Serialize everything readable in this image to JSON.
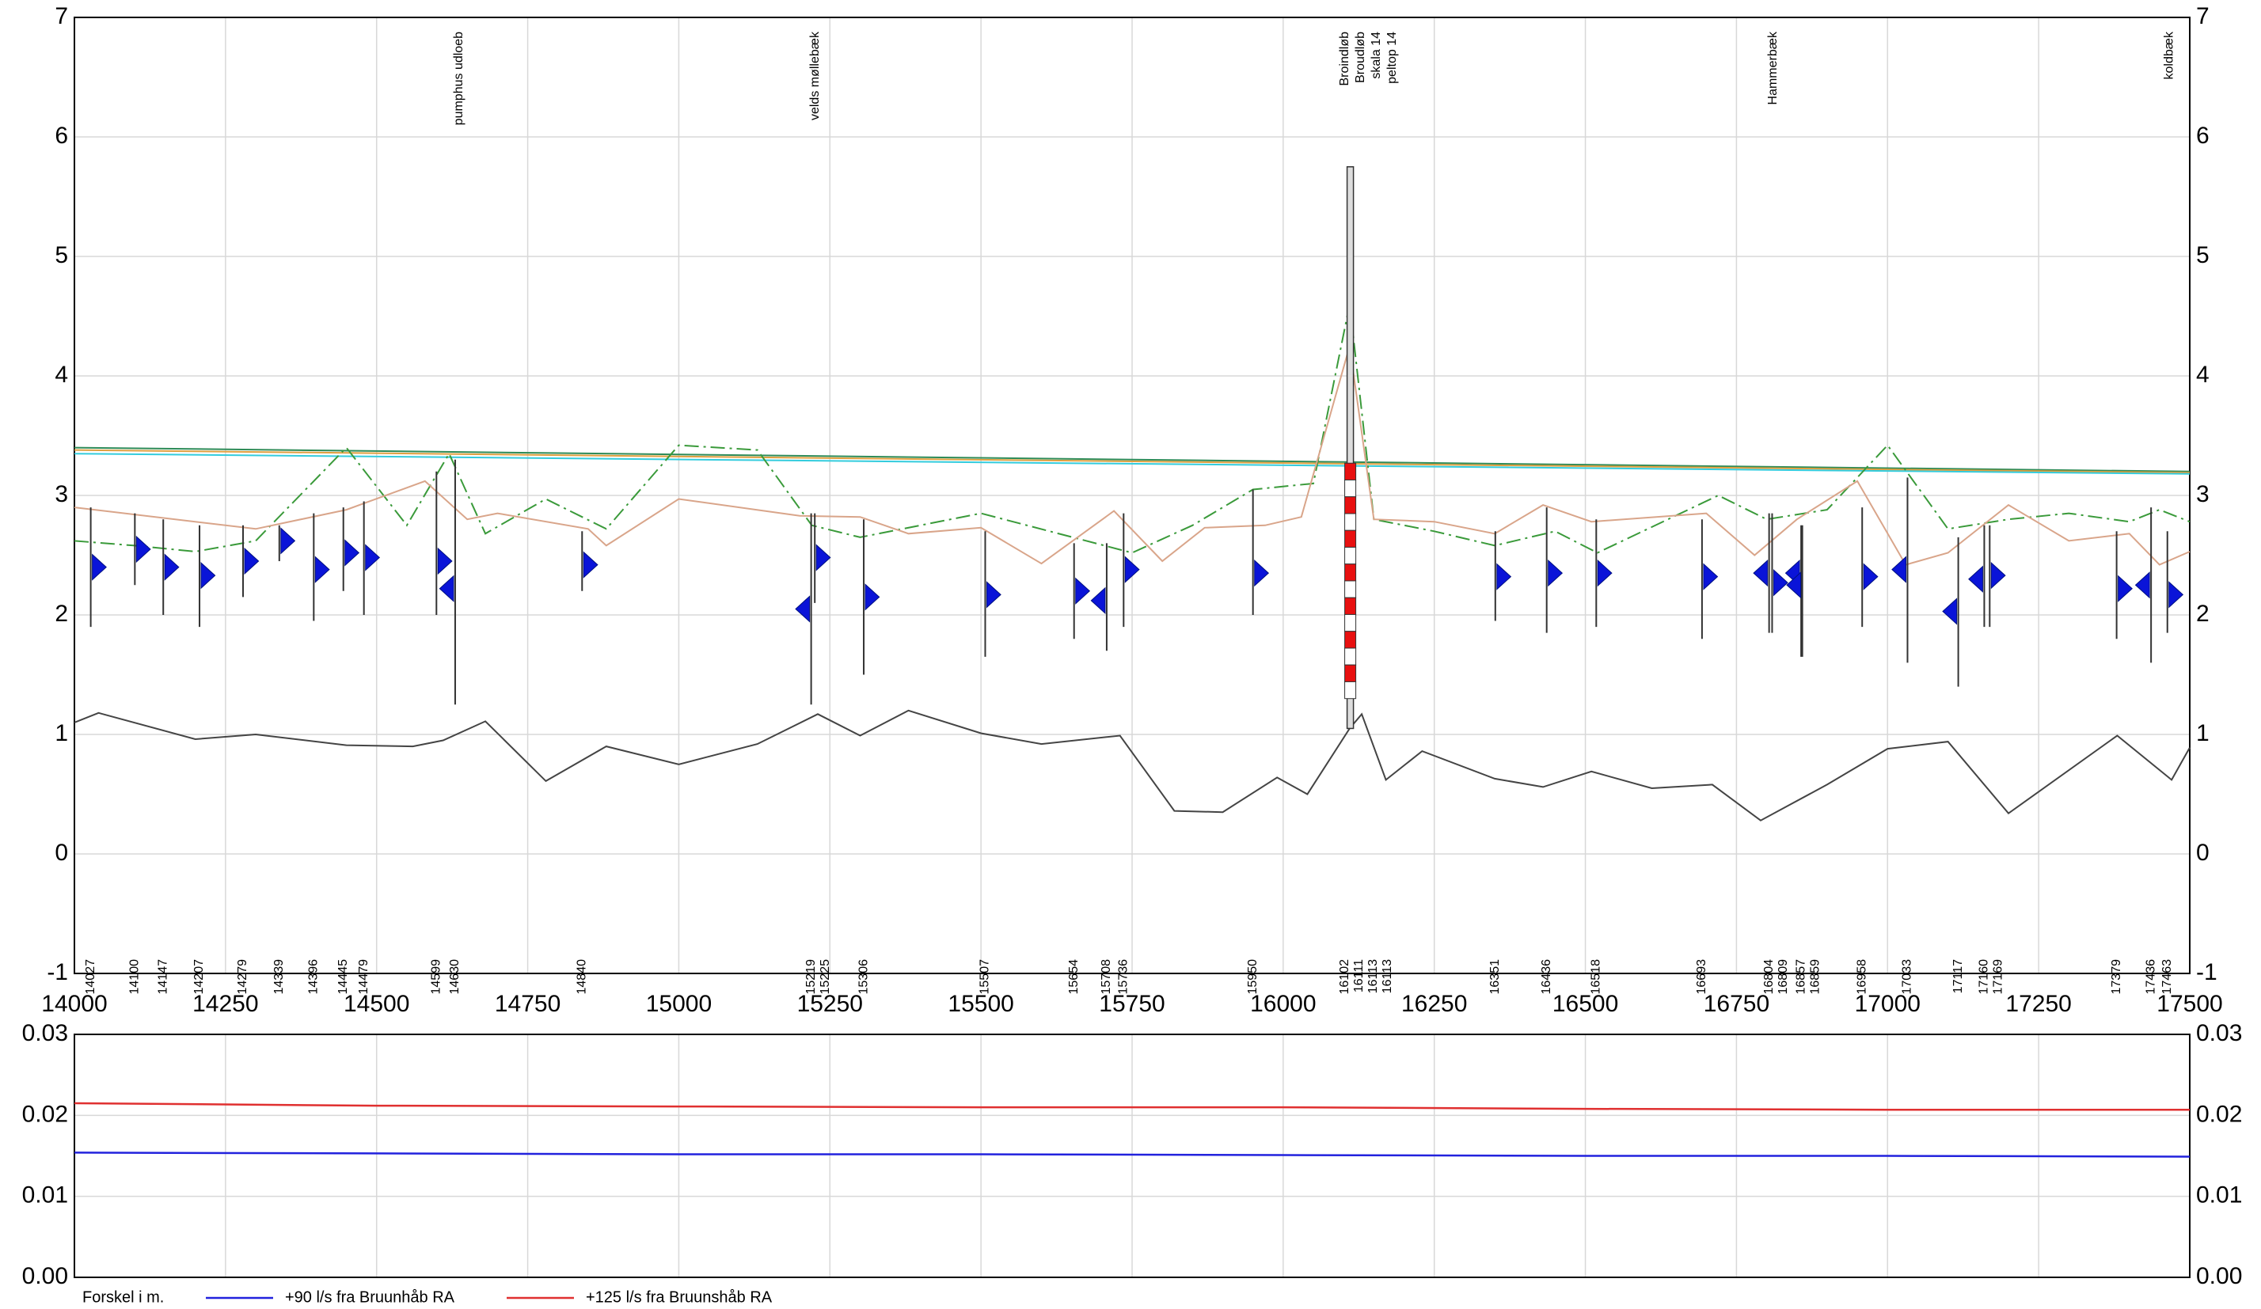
{
  "chart_data": [
    {
      "type": "profile",
      "xlim": [
        14000,
        17500
      ],
      "ylim": [
        -1,
        7
      ],
      "xticks": [
        14000,
        14250,
        14500,
        14750,
        15000,
        15250,
        15500,
        15750,
        16000,
        16250,
        16500,
        16750,
        17000,
        17250,
        17500
      ],
      "yticks": [
        -1,
        0,
        1,
        2,
        3,
        4,
        5,
        6,
        7
      ],
      "grid": true,
      "series": [
        {
          "color": "#2e8b57",
          "x": [
            14000,
            17500
          ],
          "values": [
            3.4,
            3.2
          ]
        },
        {
          "color": "#e0a040",
          "x": [
            14000,
            17500
          ],
          "values": [
            3.38,
            3.19
          ]
        },
        {
          "color": "#33ccdd",
          "x": [
            14000,
            17500
          ],
          "values": [
            3.35,
            3.18
          ]
        },
        {
          "color": "#3a9a3a",
          "style": "dashdot",
          "x": [
            14000,
            14100,
            14200,
            14300,
            14450,
            14550,
            14620,
            14680,
            14780,
            14880,
            15000,
            15130,
            15220,
            15300,
            15500,
            15750,
            15850,
            15950,
            16050,
            16110,
            16150,
            16250,
            16350,
            16450,
            16520,
            16720,
            16800,
            16900,
            17000,
            17100,
            17200,
            17300,
            17400,
            17450,
            17500
          ],
          "values": [
            2.62,
            2.58,
            2.53,
            2.62,
            3.4,
            2.75,
            3.35,
            2.68,
            2.97,
            2.72,
            3.42,
            3.38,
            2.75,
            2.65,
            2.85,
            2.52,
            2.75,
            3.05,
            3.1,
            4.6,
            2.8,
            2.7,
            2.58,
            2.7,
            2.52,
            3.0,
            2.8,
            2.88,
            3.42,
            2.72,
            2.8,
            2.85,
            2.78,
            2.88,
            2.78
          ]
        },
        {
          "color": "#d9a58a",
          "x": [
            14000,
            14300,
            14450,
            14580,
            14650,
            14700,
            14850,
            14880,
            15000,
            15200,
            15300,
            15380,
            15500,
            15600,
            15720,
            15800,
            15870,
            15970,
            16030,
            16110,
            16150,
            16250,
            16350,
            16430,
            16510,
            16700,
            16780,
            16850,
            16950,
            17030,
            17100,
            17200,
            17300,
            17400,
            17450,
            17500
          ],
          "values": [
            2.9,
            2.72,
            2.88,
            3.12,
            2.8,
            2.85,
            2.72,
            2.58,
            2.97,
            2.83,
            2.82,
            2.68,
            2.73,
            2.43,
            2.87,
            2.45,
            2.73,
            2.75,
            2.82,
            4.25,
            2.8,
            2.78,
            2.68,
            2.92,
            2.78,
            2.85,
            2.5,
            2.8,
            3.12,
            2.42,
            2.52,
            2.92,
            2.62,
            2.68,
            2.42,
            2.53
          ]
        },
        {
          "color": "#444444",
          "x": [
            14000,
            14040,
            14200,
            14300,
            14450,
            14560,
            14610,
            14680,
            14780,
            14880,
            15000,
            15130,
            15230,
            15300,
            15380,
            15500,
            15600,
            15730,
            15820,
            15900,
            15990,
            16040,
            16110,
            16130,
            16170,
            16230,
            16350,
            16430,
            16510,
            16610,
            16710,
            16790,
            16900,
            17000,
            17100,
            17200,
            17380,
            17470,
            17500
          ],
          "values": [
            1.1,
            1.18,
            0.96,
            1.0,
            0.91,
            0.9,
            0.95,
            1.11,
            0.61,
            0.9,
            0.75,
            0.92,
            1.17,
            0.99,
            1.2,
            1.01,
            0.92,
            0.99,
            0.36,
            0.35,
            0.64,
            0.5,
            1.05,
            1.17,
            0.62,
            0.86,
            0.63,
            0.56,
            0.69,
            0.55,
            0.58,
            0.28,
            0.58,
            0.88,
            0.94,
            0.34,
            0.99,
            0.62,
            0.89
          ]
        }
      ],
      "stations": [
        14027,
        14100,
        14147,
        14207,
        14279,
        14339,
        14396,
        14445,
        14479,
        14599,
        14630,
        14840,
        15219,
        15225,
        15306,
        15507,
        15654,
        15708,
        15736,
        15950,
        16102,
        16111,
        16113,
        16113,
        16351,
        16436,
        16518,
        16693,
        16804,
        16809,
        16857,
        16859,
        16958,
        17033,
        17117,
        17160,
        17169,
        17379,
        17436,
        17463
      ],
      "wells": {
        "top": [
          2.9,
          2.85,
          2.8,
          2.75,
          2.75,
          2.75,
          2.85,
          2.9,
          2.95,
          3.2,
          3.3,
          2.7,
          2.85,
          2.85,
          2.8,
          2.7,
          2.6,
          2.6,
          2.85,
          3.05,
          null,
          null,
          null,
          null,
          2.7,
          2.9,
          2.8,
          2.8,
          2.85,
          2.85,
          2.75,
          2.75,
          2.9,
          3.15,
          2.65,
          2.75,
          2.75,
          2.7,
          2.9,
          2.7
        ],
        "bottom": [
          1.9,
          2.25,
          2.0,
          1.9,
          2.15,
          2.45,
          1.95,
          2.2,
          2.0,
          2.0,
          1.25,
          2.2,
          1.25,
          2.1,
          1.5,
          1.65,
          1.8,
          1.7,
          1.9,
          2.0,
          null,
          null,
          null,
          null,
          1.95,
          1.85,
          1.9,
          1.8,
          1.85,
          1.85,
          1.65,
          1.65,
          1.9,
          1.6,
          1.4,
          1.9,
          1.9,
          1.8,
          1.6,
          1.85
        ],
        "level": [
          2.4,
          2.55,
          2.4,
          2.33,
          2.45,
          2.62,
          2.38,
          2.52,
          2.48,
          2.45,
          2.22,
          2.42,
          2.05,
          2.48,
          2.15,
          2.17,
          2.2,
          2.12,
          2.38,
          2.35,
          null,
          null,
          null,
          null,
          2.32,
          2.35,
          2.35,
          2.32,
          2.35,
          2.27,
          2.35,
          2.25,
          2.32,
          2.38,
          2.03,
          2.3,
          2.33,
          2.22,
          2.25,
          2.17
        ],
        "direction": [
          "right",
          "right",
          "right",
          "right",
          "right",
          "right",
          "right",
          "right",
          "right",
          "right",
          "left",
          "right",
          "left",
          "right",
          "right",
          "right",
          "right",
          "left",
          "right",
          "right",
          null,
          null,
          null,
          null,
          "right",
          "right",
          "right",
          "right",
          "left",
          "right",
          "left",
          "left",
          "right",
          "left",
          "left",
          "left",
          "right",
          "right",
          "left",
          "right"
        ]
      },
      "structure": {
        "x": 16111,
        "top": 5.75,
        "bottom": 1.05,
        "pipe_top": 3.27,
        "pipe_bottom": 1.3
      },
      "annotations": [
        {
          "text": "pumphus udloeb",
          "x": 14636
        },
        {
          "text": "velds møllebæk",
          "x": 15226
        },
        {
          "text": "Broindløb",
          "x": 16102
        },
        {
          "text": "Broudløb",
          "x": 16111
        },
        {
          "text": "skala 14",
          "x": 16113
        },
        {
          "text": "peltop 14",
          "x": 16113
        },
        {
          "text": "Hammerbæk",
          "x": 16811
        },
        {
          "text": "koldbæk",
          "x": 17466
        }
      ]
    },
    {
      "type": "line",
      "xlim": [
        14000,
        17500
      ],
      "ylim": [
        0,
        0.03
      ],
      "yticks": [
        {
          "value": 0,
          "label": "0.00"
        },
        {
          "value": 0.01,
          "label": "0.01"
        },
        {
          "value": 0.02,
          "label": "0.02"
        },
        {
          "value": 0.03,
          "label": "0.03"
        }
      ],
      "grid": true,
      "legend_title": "Forskel i m.",
      "series": [
        {
          "name": "+90 l/s fra Bruunhåb RA",
          "color": "#2222dd",
          "x": [
            14000,
            14500,
            15000,
            15500,
            16000,
            16500,
            17000,
            17500
          ],
          "values": [
            0.0154,
            0.0153,
            0.0152,
            0.0152,
            0.0151,
            0.015,
            0.015,
            0.0149
          ]
        },
        {
          "name": "+125 l/s fra Bruunshåb RA",
          "color": "#e03030",
          "x": [
            14000,
            14500,
            15000,
            15500,
            16000,
            16500,
            17000,
            17500
          ],
          "values": [
            0.0215,
            0.0212,
            0.0211,
            0.021,
            0.021,
            0.0208,
            0.0207,
            0.0207
          ]
        }
      ]
    }
  ]
}
